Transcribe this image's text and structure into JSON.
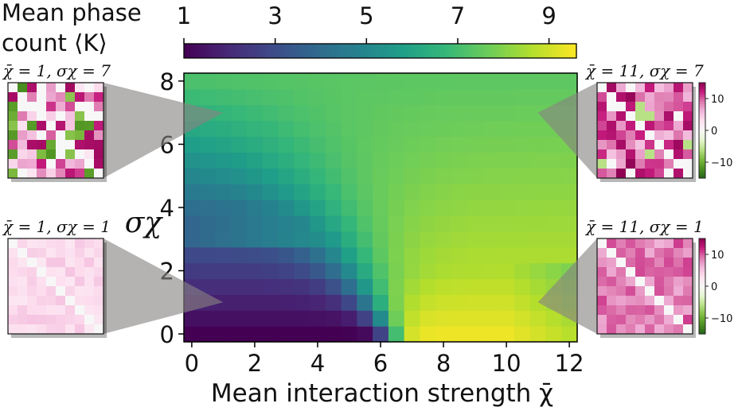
{
  "chart_data": {
    "type": "heatmap",
    "xlabel": "Mean interaction strength χ̄",
    "ylabel": "σχ",
    "xlim": [
      -0.25,
      12.25
    ],
    "ylim": [
      -0.25,
      8.25
    ],
    "x_ticks": [
      "0",
      "2",
      "4",
      "6",
      "8",
      "10",
      "12"
    ],
    "y_ticks": [
      "0",
      "2",
      "4",
      "6",
      "8"
    ],
    "grid": false,
    "cell_step": 0.5,
    "colorbar": {
      "label_line1": "Mean phase",
      "label_line2": "count ⟨K⟩",
      "range": [
        1,
        9.6
      ],
      "ticks": [
        "1",
        "3",
        "5",
        "7",
        "9"
      ],
      "colormap": "viridis"
    },
    "insets": [
      {
        "label": "χ̄ = 1, σχ = 7",
        "x": 1,
        "y": 7,
        "side": "left",
        "kind": "varied-green-pink",
        "seed": 3
      },
      {
        "label": "χ̄ = 1, σχ = 1",
        "x": 1,
        "y": 1,
        "side": "left",
        "kind": "uniform-pale-pink",
        "seed": 7
      },
      {
        "label": "χ̄ = 11, σχ = 7",
        "x": 11,
        "y": 7,
        "side": "right",
        "kind": "strong-magenta",
        "seed": 11
      },
      {
        "label": "χ̄ = 11, σχ = 1",
        "x": 11,
        "y": 1,
        "side": "right",
        "kind": "medium-pink",
        "seed": 5
      }
    ],
    "inset_colorbar": {
      "ticks": [
        "10",
        "0",
        "−10"
      ],
      "range": [
        -15,
        15
      ],
      "colormap": "PiYG"
    }
  }
}
